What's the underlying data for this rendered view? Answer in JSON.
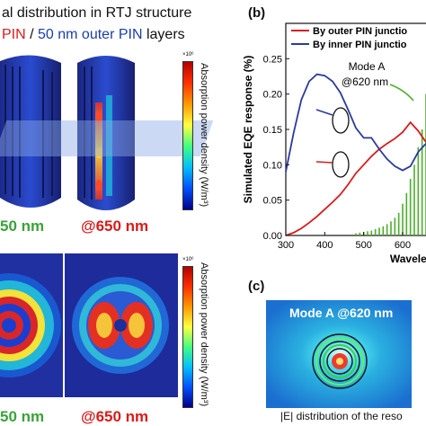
{
  "left": {
    "title_line1": "al distribution in RTJ structure",
    "title_line2_red": "PIN",
    "title_line2_sep": " / ",
    "title_line2_blue": "50 nm outer PIN",
    "title_line2_tail": " layers",
    "colorbar_label": "Absorption power density (W/m³)",
    "colorbar_exp": "×10⁶",
    "label_green_top": "50 nm",
    "label_red_top": "@650 nm",
    "label_green_bottom": "50 nm",
    "label_red_bottom": "@650 nm"
  },
  "panel_b": {
    "letter": "(b)",
    "mode_label": "Mode A",
    "mode_wavelength": "@620 nm"
  },
  "panel_c": {
    "letter": "(c)",
    "mode_text": "Mode A @620 nm",
    "caption": "|E| distribution of the reso"
  },
  "colors": {
    "red": "#d81b1b",
    "blue": "#2b3a9c",
    "green": "#4cae2c"
  },
  "chart_data": {
    "type": "line",
    "xlabel": "Wavelen",
    "ylabel": "Simulated EQE response (%)",
    "xlim": [
      300,
      660
    ],
    "ylim": [
      0,
      0.3
    ],
    "xticks": [
      "300",
      "400",
      "500",
      "600"
    ],
    "yticks": [
      "0.00",
      "0.05",
      "0.10",
      "0.15",
      "0.20",
      "0.25"
    ],
    "legend_position": "top",
    "series": [
      {
        "name": "By outer PIN junctio",
        "color": "#d81b1b",
        "x": [
          300,
          320,
          340,
          360,
          380,
          400,
          420,
          440,
          460,
          480,
          500,
          520,
          540,
          560,
          580,
          600,
          620,
          640,
          660
        ],
        "y": [
          0.0,
          0.004,
          0.01,
          0.018,
          0.027,
          0.037,
          0.047,
          0.058,
          0.072,
          0.088,
          0.1,
          0.112,
          0.122,
          0.13,
          0.137,
          0.146,
          0.16,
          0.148,
          0.132
        ]
      },
      {
        "name": "By inner PIN junctio",
        "color": "#2b3a9c",
        "x": [
          300,
          320,
          340,
          360,
          380,
          400,
          420,
          440,
          460,
          480,
          500,
          520,
          540,
          560,
          580,
          600,
          620,
          640,
          660
        ],
        "y": [
          0.09,
          0.145,
          0.192,
          0.218,
          0.228,
          0.226,
          0.218,
          0.202,
          0.178,
          0.152,
          0.138,
          0.138,
          0.122,
          0.108,
          0.098,
          0.092,
          0.098,
          0.118,
          0.13
        ]
      }
    ],
    "green_bars": {
      "color": "#4cae2c",
      "x": [
        480,
        490,
        500,
        510,
        520,
        530,
        540,
        550,
        560,
        570,
        580,
        590,
        600,
        610,
        620,
        630,
        640,
        650,
        660
      ],
      "y": [
        0.003,
        0.004,
        0.005,
        0.006,
        0.007,
        0.009,
        0.011,
        0.013,
        0.016,
        0.02,
        0.025,
        0.032,
        0.045,
        0.06,
        0.08,
        0.1,
        0.125,
        0.15,
        0.2
      ]
    }
  }
}
